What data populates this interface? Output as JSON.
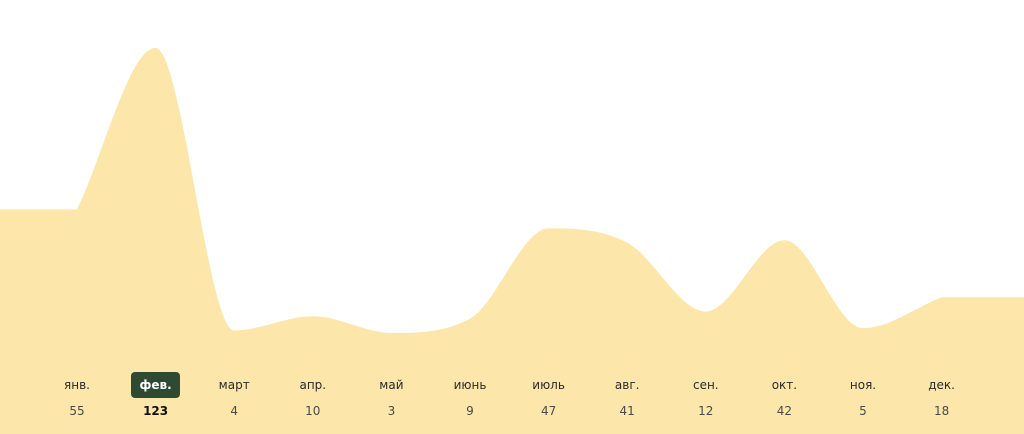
{
  "chart_data": {
    "type": "area",
    "categories": [
      "янв.",
      "фев.",
      "март",
      "апр.",
      "май",
      "июнь",
      "июль",
      "авг.",
      "сен.",
      "окт.",
      "ноя.",
      "дек."
    ],
    "values": [
      55,
      123,
      4,
      10,
      3,
      9,
      47,
      41,
      12,
      42,
      5,
      18
    ],
    "selected_index": 1,
    "title": "",
    "xlabel": "",
    "ylabel": "",
    "ylim": [
      0,
      130
    ],
    "grid": false,
    "legend": "none"
  },
  "colors": {
    "area_fill": "#fde6a9",
    "selected_background": "#2f4a33",
    "selected_text": "#ffffff"
  }
}
